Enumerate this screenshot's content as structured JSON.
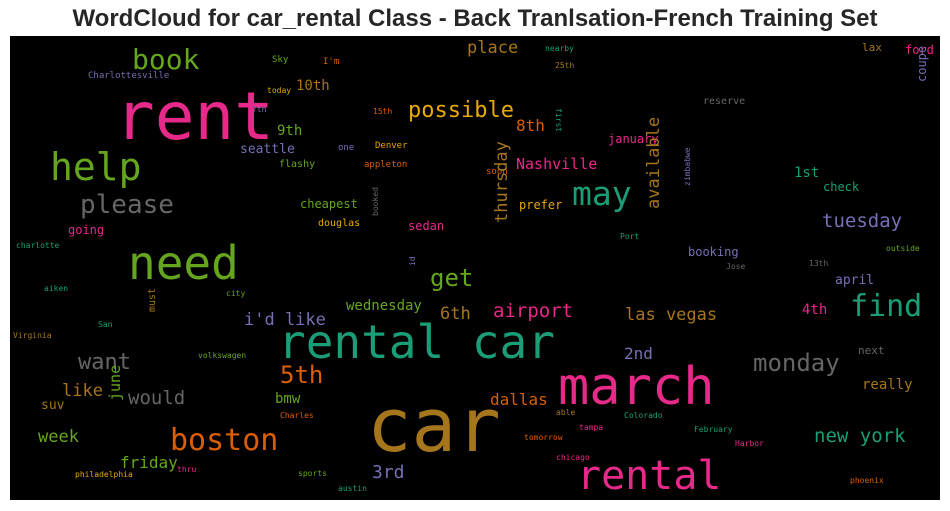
{
  "title": "WordCloud for car_rental Class - Back Tranlsation-French Training Set",
  "colors": {
    "pink": "#e7298a",
    "green": "#66a61e",
    "teal": "#1b9e77",
    "orange": "#d95f02",
    "gold": "#a6761d",
    "purple": "#7570b3",
    "yellow": "#e6ab02",
    "gray": "#666666"
  },
  "words": [
    {
      "text": "rent",
      "color": "#e7298a"
    },
    {
      "text": "car",
      "color": "#a6761d"
    },
    {
      "text": "march",
      "color": "#e7298a"
    },
    {
      "text": "rental car",
      "color": "#1b9e77"
    },
    {
      "text": "need",
      "color": "#66a61e"
    },
    {
      "text": "help",
      "color": "#66a61e"
    },
    {
      "text": "rental",
      "color": "#e7298a"
    },
    {
      "text": "boston",
      "color": "#d95f02"
    },
    {
      "text": "may",
      "color": "#1b9e77"
    },
    {
      "text": "book",
      "color": "#66a61e"
    },
    {
      "text": "find",
      "color": "#1b9e77"
    },
    {
      "text": "please",
      "color": "#666666"
    },
    {
      "text": "monday",
      "color": "#666666"
    },
    {
      "text": "possible",
      "color": "#e6ab02"
    },
    {
      "text": "get",
      "color": "#66a61e"
    },
    {
      "text": "5th",
      "color": "#d95f02"
    },
    {
      "text": "want",
      "color": "#666666"
    },
    {
      "text": "airport",
      "color": "#e7298a"
    },
    {
      "text": "new york",
      "color": "#1b9e77"
    },
    {
      "text": "tuesday",
      "color": "#7570b3"
    },
    {
      "text": "would",
      "color": "#666666"
    },
    {
      "text": "place",
      "color": "#a6761d"
    },
    {
      "text": "las vegas",
      "color": "#a6761d"
    },
    {
      "text": "i'd like",
      "color": "#7570b3"
    },
    {
      "text": "6th",
      "color": "#a6761d"
    },
    {
      "text": "like",
      "color": "#a6761d"
    },
    {
      "text": "week",
      "color": "#66a61e"
    },
    {
      "text": "3rd",
      "color": "#7570b3"
    },
    {
      "text": "dallas",
      "color": "#d95f02"
    },
    {
      "text": "friday",
      "color": "#66a61e"
    },
    {
      "text": "8th",
      "color": "#d95f02"
    },
    {
      "text": "Nashville",
      "color": "#e7298a"
    },
    {
      "text": "2nd",
      "color": "#7570b3"
    },
    {
      "text": "wednesday",
      "color": "#66a61e"
    },
    {
      "text": "10th",
      "color": "#a6761d"
    },
    {
      "text": "9th",
      "color": "#66a61e"
    },
    {
      "text": "seattle",
      "color": "#7570b3"
    },
    {
      "text": "1st",
      "color": "#1b9e77"
    },
    {
      "text": "bmw",
      "color": "#66a61e"
    },
    {
      "text": "april",
      "color": "#7570b3"
    },
    {
      "text": "4th",
      "color": "#e7298a"
    },
    {
      "text": "suv",
      "color": "#a6761d"
    },
    {
      "text": "really",
      "color": "#a6761d"
    },
    {
      "text": "january",
      "color": "#e7298a"
    },
    {
      "text": "sedan",
      "color": "#e7298a"
    },
    {
      "text": "prefer",
      "color": "#e6ab02"
    },
    {
      "text": "cheapest",
      "color": "#66a61e"
    },
    {
      "text": "check",
      "color": "#1b9e77"
    },
    {
      "text": "booking",
      "color": "#7570b3"
    },
    {
      "text": "going",
      "color": "#e7298a"
    },
    {
      "text": "douglas",
      "color": "#e6ab02"
    },
    {
      "text": "ford",
      "color": "#e7298a"
    },
    {
      "text": "lax",
      "color": "#a6761d"
    },
    {
      "text": "next",
      "color": "#666666"
    },
    {
      "text": "reserve",
      "color": "#666666"
    },
    {
      "text": "soon",
      "color": "#d95f02"
    },
    {
      "text": "flashy",
      "color": "#66a61e"
    },
    {
      "text": "one",
      "color": "#7570b3"
    },
    {
      "text": "Denver",
      "color": "#e6ab02"
    },
    {
      "text": "appleton",
      "color": "#d95f02"
    },
    {
      "text": "15th",
      "color": "#d95f02"
    },
    {
      "text": "7th",
      "color": "#7570b3"
    },
    {
      "text": "today",
      "color": "#e6ab02"
    },
    {
      "text": "Sky",
      "color": "#66a61e"
    },
    {
      "text": "I'm",
      "color": "#d95f02"
    },
    {
      "text": "nearby",
      "color": "#1b9e77"
    },
    {
      "text": "25th",
      "color": "#a6761d"
    },
    {
      "text": "Charlottesville",
      "color": "#7570b3"
    },
    {
      "text": "charlotte",
      "color": "#1b9e77"
    },
    {
      "text": "aiken",
      "color": "#1b9e77"
    },
    {
      "text": "Virginia",
      "color": "#a6761d"
    },
    {
      "text": "San",
      "color": "#1b9e77"
    },
    {
      "text": "volkswagen",
      "color": "#66a61e"
    },
    {
      "text": "city",
      "color": "#66a61e"
    },
    {
      "text": "Charles",
      "color": "#d95f02"
    },
    {
      "text": "philadelphia",
      "color": "#e6ab02"
    },
    {
      "text": "thru",
      "color": "#e7298a"
    },
    {
      "text": "sports",
      "color": "#66a61e"
    },
    {
      "text": "austin",
      "color": "#1b9e77"
    },
    {
      "text": "chicago",
      "color": "#e7298a"
    },
    {
      "text": "tampa",
      "color": "#e7298a"
    },
    {
      "text": "able",
      "color": "#a6761d"
    },
    {
      "text": "tomorrow",
      "color": "#d95f02"
    },
    {
      "text": "Colorado",
      "color": "#1b9e77"
    },
    {
      "text": "February",
      "color": "#1b9e77"
    },
    {
      "text": "Harbor",
      "color": "#e7298a"
    },
    {
      "text": "phoenix",
      "color": "#d95f02"
    },
    {
      "text": "outside",
      "color": "#66a61e"
    },
    {
      "text": "13th",
      "color": "#666666"
    },
    {
      "text": "Jose",
      "color": "#666666"
    },
    {
      "text": "Port",
      "color": "#1b9e77"
    },
    {
      "text": "thursday",
      "color": "#a6761d"
    },
    {
      "text": "available",
      "color": "#a6761d"
    },
    {
      "text": "june",
      "color": "#66a61e"
    },
    {
      "text": "must",
      "color": "#a6761d"
    },
    {
      "text": "booked",
      "color": "#666666"
    },
    {
      "text": "id",
      "color": "#7570b3"
    },
    {
      "text": "zimbabwe",
      "color": "#7570b3"
    },
    {
      "text": "coupe",
      "color": "#7570b3"
    },
    {
      "text": "first",
      "color": "#1b9e77"
    }
  ]
}
